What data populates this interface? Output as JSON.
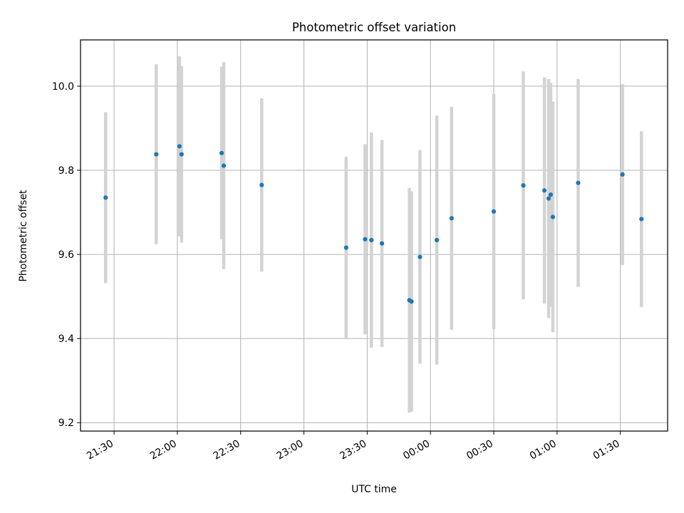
{
  "chart_data": {
    "type": "scatter",
    "title": "Photometric offset variation",
    "xlabel": "UTC time",
    "ylabel": "Photometric offset",
    "x_tick_labels": [
      "21:30",
      "22:00",
      "22:30",
      "23:00",
      "23:30",
      "00:00",
      "00:30",
      "01:00",
      "01:30"
    ],
    "y_tick_labels": [
      "9.2",
      "9.4",
      "9.6",
      "9.8",
      "10.0"
    ],
    "y_ticks": [
      9.2,
      9.4,
      9.6,
      9.8,
      10.0
    ],
    "x_ticks_min_since_start": [
      0,
      30,
      60,
      90,
      120,
      150,
      180,
      210,
      240
    ],
    "xlim_min_since_start": [
      -15.9,
      262.4
    ],
    "ylim": [
      9.18,
      10.11
    ],
    "grid": true,
    "colors": {
      "points": "#1f77b4",
      "errorbars": "#d3d3d3",
      "grid": "#b0b0b0"
    },
    "series": [
      {
        "points": [
          {
            "x": "21:26",
            "y": 9.735,
            "err": 0.203
          },
          {
            "x": "21:50",
            "y": 9.838,
            "err": 0.214
          },
          {
            "x": "22:01",
            "y": 9.857,
            "err": 0.214
          },
          {
            "x": "22:02",
            "y": 9.838,
            "err": 0.21
          },
          {
            "x": "22:21",
            "y": 9.841,
            "err": 0.205
          },
          {
            "x": "22:22",
            "y": 9.811,
            "err": 0.246
          },
          {
            "x": "22:40",
            "y": 9.765,
            "err": 0.206
          },
          {
            "x": "23:20",
            "y": 9.616,
            "err": 0.216
          },
          {
            "x": "23:29",
            "y": 9.636,
            "err": 0.226
          },
          {
            "x": "23:32",
            "y": 9.634,
            "err": 0.256
          },
          {
            "x": "23:37",
            "y": 9.626,
            "err": 0.246
          },
          {
            "x": "23:50",
            "y": 9.491,
            "err": 0.267
          },
          {
            "x": "23:51",
            "y": 9.488,
            "err": 0.262
          },
          {
            "x": "23:55",
            "y": 9.594,
            "err": 0.254
          },
          {
            "x": "00:03",
            "y": 9.634,
            "err": 0.296
          },
          {
            "x": "00:10",
            "y": 9.686,
            "err": 0.265
          },
          {
            "x": "00:30",
            "y": 9.702,
            "err": 0.28
          },
          {
            "x": "00:44",
            "y": 9.764,
            "err": 0.271
          },
          {
            "x": "00:54",
            "y": 9.752,
            "err": 0.269
          },
          {
            "x": "00:56",
            "y": 9.733,
            "err": 0.284
          },
          {
            "x": "00:57",
            "y": 9.742,
            "err": 0.266
          },
          {
            "x": "00:58",
            "y": 9.689,
            "err": 0.274
          },
          {
            "x": "01:10",
            "y": 9.77,
            "err": 0.247
          },
          {
            "x": "01:31",
            "y": 9.79,
            "err": 0.215
          },
          {
            "x": "01:40",
            "y": 9.684,
            "err": 0.209
          }
        ]
      }
    ]
  }
}
